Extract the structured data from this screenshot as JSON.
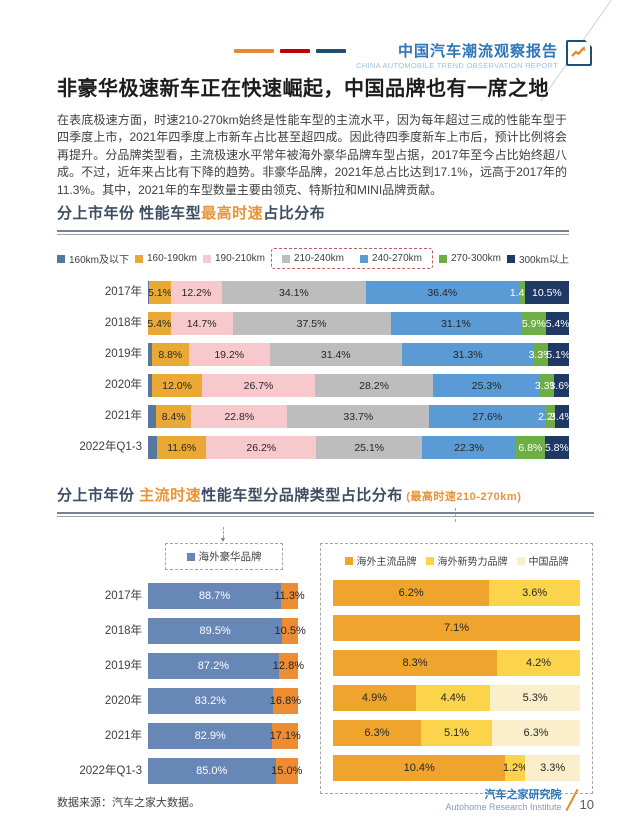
{
  "header": {
    "brand_title": "中国汽车潮流观察报告",
    "brand_subtitle": "CHINA AUTOMOBILE TREND OBSERVATION REPORT",
    "dash_colors": [
      "#E8882E",
      "#C00000",
      "#1F4E79"
    ],
    "icon": "trend-chart-icon",
    "brand_color": "#2E75B6"
  },
  "page_title": "非豪华极速新车正在快速崛起，中国品牌也有一席之地",
  "intro_paragraph": "在表底极速方面，时速210-270km始终是性能车型的主流水平，因为每年超过三成的性能车型于四季度上市，2021年四季度上市新车占比甚至超四成。因此待四季度新车上市后，预计比例将会再提升。分品牌类型看，主流极速水平常年被海外豪华品牌车型占据，2017年至今占比始终超八成。不过，近年来占比有下降的趋势。非豪华品牌，2021年总占比达到17.1%，远高于2017年的11.3%。其中，2021年的车型数量主要由领克、特斯拉和MINI品牌贡献。",
  "section1": {
    "title_parts": [
      {
        "text": "分上市年份 性能车型",
        "color": "#3D4D63"
      },
      {
        "text": "最高时速",
        "color": "#E89436"
      },
      {
        "text": "占比分布",
        "color": "#3D4D63"
      }
    ]
  },
  "section2": {
    "title_parts": [
      {
        "text": "分上市年份 ",
        "color": "#3D4D63"
      },
      {
        "text": "主流时速",
        "color": "#E89436"
      },
      {
        "text": "性能车型分品牌类型占比分布",
        "color": "#3D4D63"
      },
      {
        "text": " (最高时速210-270km)",
        "color": "#E89436",
        "small": true
      }
    ]
  },
  "chart_data": [
    {
      "id": "top-speed-share",
      "type": "bar",
      "stacked": true,
      "orientation": "horizontal",
      "title": "分上市年份 性能车型最高时速占比分布",
      "categories": [
        "2017年",
        "2018年",
        "2019年",
        "2020年",
        "2021年",
        "2022年Q1-3"
      ],
      "xlim_percent": [
        0,
        100
      ],
      "grid": false,
      "legend_position": "top",
      "highlight_note": "210-240km与240-270km两项图例被红色虚线框标出",
      "series": [
        {
          "name": "160km及以下",
          "color": "#56789F",
          "label_color": "#FFFFFF",
          "show_labels": false,
          "highlight": false,
          "values": [
            0.3,
            0.0,
            0.9,
            0.9,
            1.9,
            2.2
          ]
        },
        {
          "name": "160-190km",
          "color": "#EAA935",
          "label_color": "#262626",
          "highlight": false,
          "values": [
            5.1,
            5.4,
            8.8,
            12.0,
            8.4,
            11.6
          ]
        },
        {
          "name": "190-210km",
          "color": "#F7C8CC",
          "label_color": "#262626",
          "highlight": false,
          "values": [
            12.2,
            14.7,
            19.2,
            26.7,
            22.8,
            26.2
          ]
        },
        {
          "name": "210-240km",
          "color": "#BDBDBD",
          "label_color": "#262626",
          "highlight": true,
          "values": [
            34.1,
            37.5,
            31.4,
            28.2,
            33.7,
            25.1
          ]
        },
        {
          "name": "240-270km",
          "color": "#5B9BD5",
          "label_color": "#262626",
          "highlight": true,
          "values": [
            36.4,
            31.1,
            31.3,
            25.3,
            27.6,
            22.3
          ]
        },
        {
          "name": "270-300km",
          "color": "#6FAD47",
          "label_color": "#FFFFFF",
          "highlight": false,
          "values": [
            1.4,
            5.9,
            3.3,
            3.3,
            2.2,
            6.8
          ]
        },
        {
          "name": "300km以上",
          "color": "#1F3864",
          "label_color": "#FFFFFF",
          "highlight": false,
          "values": [
            10.5,
            5.4,
            5.1,
            3.6,
            3.4,
            5.8
          ]
        }
      ]
    },
    {
      "id": "overseas-luxury-share",
      "type": "bar",
      "stacked": true,
      "orientation": "horizontal",
      "categories": [
        "2017年",
        "2018年",
        "2019年",
        "2020年",
        "2021年",
        "2022年Q1-3"
      ],
      "legend": [
        "海外豪华品牌"
      ],
      "series": [
        {
          "name": "海外豪华品牌",
          "color": "#6787B7",
          "label_color": "#FFFFFF",
          "in_legend": true,
          "values": [
            88.7,
            89.5,
            87.2,
            83.2,
            82.9,
            85.0
          ]
        },
        {
          "name": "非豪华品牌",
          "color": "#ED8C33",
          "label_color": "#262626",
          "in_legend": false,
          "values": [
            11.3,
            10.5,
            12.8,
            16.8,
            17.1,
            15.0
          ]
        }
      ]
    },
    {
      "id": "non-luxury-brand-type-share",
      "type": "bar",
      "stacked": true,
      "orientation": "horizontal",
      "categories": [
        "2017年",
        "2018年",
        "2019年",
        "2020年",
        "2021年",
        "2022年Q1-3"
      ],
      "legend": [
        "海外主流品牌",
        "海外新势力品牌",
        "中国品牌"
      ],
      "series": [
        {
          "name": "海外主流品牌",
          "color": "#EFA42E",
          "label_color": "#262626",
          "values": [
            6.2,
            7.1,
            8.3,
            4.9,
            6.3,
            10.4
          ]
        },
        {
          "name": "海外新势力品牌",
          "color": "#FBD44C",
          "label_color": "#262626",
          "values": [
            3.6,
            0,
            4.2,
            4.4,
            5.1,
            1.2
          ]
        },
        {
          "name": "中国品牌",
          "color": "#FBEFCB",
          "label_color": "#262626",
          "values": [
            0,
            0,
            0,
            5.3,
            6.3,
            3.3
          ]
        }
      ]
    }
  ],
  "footer": {
    "source": "数据来源：汽车之家大数据。",
    "org_cn": "汽车之家研究院",
    "org_en": "Autohome Research Institute",
    "page_number": "10"
  }
}
